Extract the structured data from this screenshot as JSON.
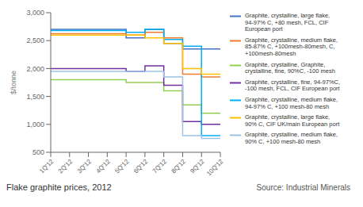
{
  "chart_data": {
    "type": "line",
    "title": "Flake graphite prices, 2012",
    "annotations": [
      "Source: Industrial Minerals"
    ],
    "y_label": "$/tonne",
    "xlim": [
      0,
      9
    ],
    "xticks": [
      {
        "value": 0,
        "label": "1Q'12"
      },
      {
        "value": 1,
        "label": "2Q'12"
      },
      {
        "value": 2,
        "label": "3Q'12"
      },
      {
        "value": 3,
        "label": "4Q'12"
      },
      {
        "value": 4,
        "label": "5Q'12"
      },
      {
        "value": 5,
        "label": "6Q'12"
      },
      {
        "value": 6,
        "label": "7Q'12"
      },
      {
        "value": 7,
        "label": "8Q'12"
      },
      {
        "value": 8,
        "label": "9Q'12"
      },
      {
        "value": 9,
        "label": "10Q'12"
      }
    ],
    "ylim": [
      500,
      3000
    ],
    "yticks": [
      500,
      {
        "value": 1000,
        "label": "1,000"
      },
      {
        "value": 1500,
        "label": "1,500"
      },
      {
        "value": 2000,
        "label": "2,000"
      },
      {
        "value": 2500,
        "label": "2,500"
      },
      {
        "value": 3000,
        "label": "3,000"
      }
    ],
    "grid": false,
    "legend": "right",
    "series": [
      {
        "name": "Graphite, crystalline, large flake,\n94-97% C, +80 mesh, FCL, CIF\nEuropean port",
        "color": "#4472c4",
        "x": [
          0,
          4,
          4,
          5,
          5,
          6,
          6,
          7,
          7,
          9
        ],
        "values": [
          2700,
          2700,
          2550,
          2550,
          2700,
          2700,
          2450,
          2450,
          2350,
          2350
        ]
      },
      {
        "name": "Graphite, crystalline, medium flake,\n85-87% C, +100mesh-80mesh, C,\n+100mesh-80mesh",
        "color": "#ed7d31",
        "x": [
          0,
          4,
          4,
          5,
          5,
          6,
          6,
          7,
          7,
          8,
          8,
          9
        ],
        "values": [
          2625,
          2625,
          2600,
          2600,
          2650,
          2650,
          2550,
          2550,
          1900,
          1900,
          1850,
          1850
        ]
      },
      {
        "name": "Graphite, crystalline, Graphite,\ncrystalline, fine, 90%C, -100 mesh",
        "color": "#92d050",
        "x": [
          0,
          4,
          4,
          5,
          5,
          6,
          6,
          7,
          7,
          8,
          8,
          9
        ],
        "values": [
          1800,
          1800,
          1750,
          1750,
          1750,
          1750,
          1600,
          1600,
          1350,
          1350,
          1200,
          1200
        ]
      },
      {
        "name": "Graphite, crystalline, fine, 94-97%C,\n-100 mesh, FCL, CIF European port",
        "color": "#7030a0",
        "x": [
          0,
          4,
          4,
          5,
          5,
          6,
          6,
          7,
          7,
          8,
          8,
          9
        ],
        "values": [
          2000,
          2000,
          1950,
          1950,
          2050,
          2050,
          1700,
          1700,
          1050,
          1050,
          1000,
          1000
        ]
      },
      {
        "name": "Graphite, crystalline, medium flake,\n94-97% C, +100 mesh-80 mesh",
        "color": "#00b0f0",
        "x": [
          0,
          4,
          4,
          5,
          5,
          6,
          6,
          7,
          7,
          8,
          8,
          9
        ],
        "values": [
          2680,
          2680,
          2650,
          2650,
          2700,
          2700,
          2520,
          2520,
          2400,
          2400,
          800,
          800
        ]
      },
      {
        "name": "Graphite, crystalline, large flake,\n90% C, CIF UK/main European port",
        "color": "#ffc000",
        "x": [
          0,
          5,
          5,
          6,
          6,
          7,
          7,
          8,
          8,
          9
        ],
        "values": [
          2600,
          2600,
          2550,
          2550,
          2450,
          2450,
          2000,
          2000,
          1900,
          1900
        ]
      },
      {
        "name": "Graphite, crystalline, medium flake,\n90% C, +100 mesh-80 mesh",
        "color": "#9dc3e6",
        "x": [
          0,
          5,
          5,
          6,
          6,
          7,
          7,
          8,
          8,
          9
        ],
        "values": [
          1950,
          1950,
          1950,
          1950,
          1850,
          1850,
          800,
          800,
          750,
          750
        ]
      }
    ]
  }
}
